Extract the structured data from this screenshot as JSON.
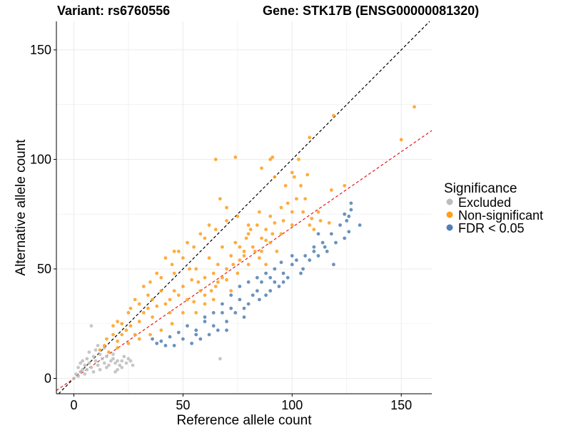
{
  "chart_data": {
    "type": "scatter",
    "title_left": "Variant: rs6760556",
    "title_right": "Gene: STK17B (ENSG00000081320)",
    "xlabel": "Reference allele count",
    "ylabel": "Alternative allele count",
    "xlim": [
      -8,
      164
    ],
    "ylim": [
      -7,
      163
    ],
    "xticks": [
      0,
      50,
      100,
      150
    ],
    "yticks": [
      0,
      50,
      100,
      150
    ],
    "grid": true,
    "reference_lines": [
      {
        "name": "identity",
        "slope": 1,
        "intercept": 0,
        "color": "#000000",
        "style": "dashed"
      },
      {
        "name": "fit",
        "slope": 0.69,
        "intercept": 0,
        "color": "#e41a1c",
        "style": "dashed"
      }
    ],
    "legend": {
      "title": "Significance",
      "position": "right",
      "entries": [
        {
          "label": "Excluded",
          "color": "#bdbdbd"
        },
        {
          "label": "Non-significant",
          "color": "#ff9e1b"
        },
        {
          "label": "FDR < 0.05",
          "color": "#4f7fb3"
        }
      ]
    },
    "series": [
      {
        "name": "Excluded",
        "color": "#bdbdbd",
        "points": [
          [
            0,
            0
          ],
          [
            1,
            2
          ],
          [
            2,
            1
          ],
          [
            3,
            3
          ],
          [
            2,
            5
          ],
          [
            4,
            4
          ],
          [
            5,
            2
          ],
          [
            5,
            6
          ],
          [
            6,
            4
          ],
          [
            7,
            7
          ],
          [
            8,
            5
          ],
          [
            9,
            3
          ],
          [
            8,
            24
          ],
          [
            9,
            10
          ],
          [
            10,
            8
          ],
          [
            11,
            6
          ],
          [
            12,
            11
          ],
          [
            13,
            9
          ],
          [
            14,
            7
          ],
          [
            15,
            10
          ],
          [
            16,
            6
          ],
          [
            17,
            8
          ],
          [
            18,
            9
          ],
          [
            19,
            7
          ],
          [
            20,
            8
          ],
          [
            21,
            6
          ],
          [
            22,
            8
          ],
          [
            23,
            10
          ],
          [
            24,
            7
          ],
          [
            25,
            9
          ],
          [
            26,
            8
          ],
          [
            27,
            6
          ],
          [
            3,
            7
          ],
          [
            6,
            9
          ],
          [
            10,
            13
          ],
          [
            12,
            4
          ],
          [
            15,
            5
          ],
          [
            18,
            11
          ],
          [
            20,
            4
          ],
          [
            22,
            5
          ],
          [
            11,
            15
          ],
          [
            7,
            12
          ],
          [
            4,
            8
          ],
          [
            14,
            14
          ],
          [
            19,
            3
          ],
          [
            67,
            9
          ]
        ]
      },
      {
        "name": "Non-significant",
        "color": "#ff9e1b",
        "points": [
          [
            12,
            13
          ],
          [
            14,
            15
          ],
          [
            16,
            12
          ],
          [
            18,
            20
          ],
          [
            20,
            17
          ],
          [
            22,
            25
          ],
          [
            24,
            22
          ],
          [
            26,
            32
          ],
          [
            28,
            20
          ],
          [
            30,
            26
          ],
          [
            32,
            30
          ],
          [
            34,
            38
          ],
          [
            36,
            28
          ],
          [
            38,
            33
          ],
          [
            40,
            40
          ],
          [
            42,
            34
          ],
          [
            44,
            30
          ],
          [
            46,
            48
          ],
          [
            48,
            38
          ],
          [
            50,
            42
          ],
          [
            52,
            36
          ],
          [
            54,
            45
          ],
          [
            56,
            50
          ],
          [
            58,
            40
          ],
          [
            60,
            46
          ],
          [
            62,
            55
          ],
          [
            64,
            48
          ],
          [
            66,
            52
          ],
          [
            68,
            60
          ],
          [
            70,
            50
          ],
          [
            72,
            56
          ],
          [
            74,
            62
          ],
          [
            76,
            54
          ],
          [
            78,
            58
          ],
          [
            80,
            66
          ],
          [
            82,
            60
          ],
          [
            84,
            70
          ],
          [
            86,
            64
          ],
          [
            88,
            68
          ],
          [
            90,
            74
          ],
          [
            92,
            71
          ],
          [
            95,
            78
          ],
          [
            98,
            80
          ],
          [
            100,
            76
          ],
          [
            102,
            82
          ],
          [
            105,
            76
          ],
          [
            108,
            70
          ],
          [
            110,
            68
          ],
          [
            112,
            76
          ],
          [
            118,
            86
          ],
          [
            88,
            63
          ],
          [
            45,
            25
          ],
          [
            50,
            30
          ],
          [
            55,
            35
          ],
          [
            60,
            38
          ],
          [
            65,
            42
          ],
          [
            70,
            45
          ],
          [
            75,
            48
          ],
          [
            80,
            52
          ],
          [
            85,
            55
          ],
          [
            35,
            20
          ],
          [
            40,
            22
          ],
          [
            30,
            18
          ],
          [
            25,
            16
          ],
          [
            20,
            14
          ],
          [
            35,
            44
          ],
          [
            40,
            46
          ],
          [
            45,
            52
          ],
          [
            50,
            55
          ],
          [
            55,
            60
          ],
          [
            60,
            64
          ],
          [
            65,
            68
          ],
          [
            70,
            72
          ],
          [
            58,
            66
          ],
          [
            52,
            62
          ],
          [
            62,
            70
          ],
          [
            67,
            82
          ],
          [
            70,
            78
          ],
          [
            75,
            74
          ],
          [
            80,
            70
          ],
          [
            85,
            76
          ],
          [
            90,
            62
          ],
          [
            95,
            66
          ],
          [
            100,
            70
          ],
          [
            30,
            34
          ],
          [
            25,
            30
          ],
          [
            20,
            26
          ],
          [
            15,
            18
          ],
          [
            18,
            24
          ],
          [
            28,
            36
          ],
          [
            32,
            42
          ],
          [
            38,
            48
          ],
          [
            42,
            55
          ],
          [
            48,
            58
          ],
          [
            53,
            50
          ],
          [
            57,
            44
          ],
          [
            63,
            40
          ],
          [
            68,
            46
          ],
          [
            73,
            52
          ],
          [
            78,
            56
          ],
          [
            83,
            58
          ],
          [
            88,
            52
          ],
          [
            93,
            58
          ],
          [
            44,
            36
          ],
          [
            46,
            40
          ],
          [
            36,
            36
          ],
          [
            26,
            24
          ],
          [
            22,
            20
          ],
          [
            34,
            32
          ],
          [
            56,
            30
          ],
          [
            60,
            34
          ],
          [
            64,
            36
          ],
          [
            66,
            44
          ],
          [
            72,
            40
          ],
          [
            46,
            58
          ],
          [
            76,
            60
          ],
          [
            79,
            64
          ],
          [
            81,
            68
          ],
          [
            86,
            58
          ],
          [
            91,
            66
          ],
          [
            96,
            72
          ],
          [
            97,
            88
          ],
          [
            92,
            92
          ],
          [
            106,
            82
          ],
          [
            104,
            88
          ],
          [
            101,
            92
          ],
          [
            86,
            96
          ],
          [
            91,
            101
          ],
          [
            65,
            100
          ],
          [
            74,
            101
          ],
          [
            90,
            100
          ],
          [
            103,
            100
          ],
          [
            107,
            93
          ],
          [
            100,
            94
          ],
          [
            108,
            110
          ],
          [
            119,
            120
          ],
          [
            124,
            88
          ],
          [
            150,
            109
          ],
          [
            156,
            124
          ],
          [
            117,
            71
          ],
          [
            113,
            72
          ],
          [
            109,
            73
          ]
        ]
      },
      {
        "name": "FDR < 0.05",
        "color": "#4f7fb3",
        "points": [
          [
            36,
            18
          ],
          [
            40,
            17
          ],
          [
            44,
            19
          ],
          [
            48,
            21
          ],
          [
            52,
            24
          ],
          [
            56,
            22
          ],
          [
            60,
            28
          ],
          [
            64,
            24
          ],
          [
            68,
            30
          ],
          [
            72,
            32
          ],
          [
            76,
            36
          ],
          [
            80,
            34
          ],
          [
            84,
            40
          ],
          [
            88,
            38
          ],
          [
            92,
            44
          ],
          [
            96,
            48
          ],
          [
            100,
            52
          ],
          [
            104,
            48
          ],
          [
            108,
            54
          ],
          [
            112,
            56
          ],
          [
            116,
            58
          ],
          [
            120,
            62
          ],
          [
            124,
            64
          ],
          [
            126,
            74
          ],
          [
            127,
            77
          ],
          [
            122,
            70
          ],
          [
            118,
            66
          ],
          [
            114,
            62
          ],
          [
            110,
            60
          ],
          [
            106,
            56
          ],
          [
            102,
            54
          ],
          [
            98,
            46
          ],
          [
            94,
            42
          ],
          [
            90,
            40
          ],
          [
            86,
            44
          ],
          [
            82,
            38
          ],
          [
            78,
            28
          ],
          [
            74,
            30
          ],
          [
            70,
            26
          ],
          [
            66,
            22
          ],
          [
            62,
            20
          ],
          [
            58,
            18
          ],
          [
            54,
            16
          ],
          [
            50,
            18
          ],
          [
            46,
            15
          ],
          [
            42,
            15
          ],
          [
            38,
            16
          ],
          [
            88,
            48
          ],
          [
            84,
            46
          ],
          [
            80,
            44
          ],
          [
            76,
            42
          ],
          [
            72,
            38
          ],
          [
            68,
            34
          ],
          [
            64,
            30
          ],
          [
            60,
            26
          ],
          [
            56,
            20
          ],
          [
            90,
            46
          ],
          [
            92,
            50
          ],
          [
            95,
            53
          ],
          [
            100,
            56
          ],
          [
            112,
            66
          ],
          [
            115,
            60
          ],
          [
            125,
            72
          ],
          [
            126,
            67
          ],
          [
            127,
            80
          ],
          [
            124,
            75
          ],
          [
            131,
            70
          ],
          [
            119,
            52
          ],
          [
            70,
            22
          ],
          [
            78,
            32
          ],
          [
            85,
            36
          ],
          [
            96,
            44
          ],
          [
            105,
            50
          ],
          [
            110,
            58
          ]
        ]
      }
    ]
  }
}
